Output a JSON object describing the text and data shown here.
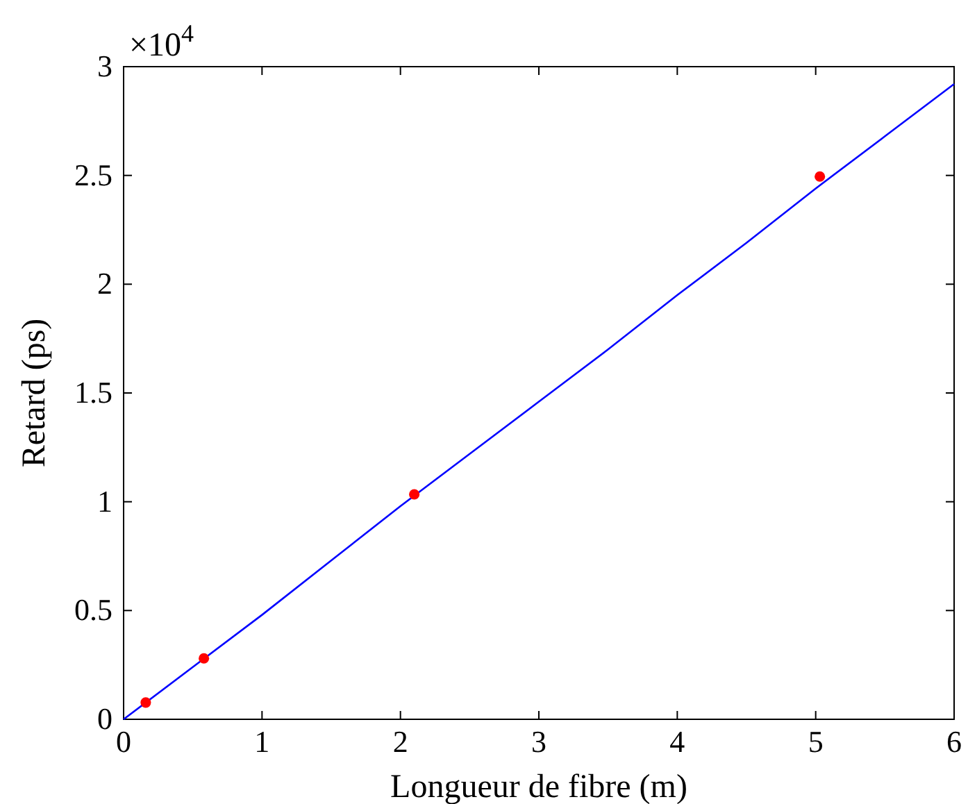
{
  "chart_data": {
    "type": "line",
    "xlabel": "Longueur de fibre (m)",
    "ylabel": "Retard (ps)",
    "annotations": [
      "×10$^{4}$"
    ],
    "xlim": [
      0,
      6
    ],
    "xticks": [
      0,
      1,
      2,
      3,
      4,
      5,
      6
    ],
    "ylim": [
      0,
      3
    ],
    "yticks": [
      0,
      0.5,
      1,
      1.5,
      2,
      2.5,
      3
    ],
    "grid": false,
    "series": [
      {
        "color": "#0000ff",
        "marker": "none",
        "line_style": "solid",
        "x": [
          0,
          0.5,
          1,
          1.5,
          2,
          2.5,
          3,
          3.5,
          4,
          4.5,
          5,
          5.5,
          6
        ],
        "values": [
          0,
          0.24,
          0.48,
          0.73,
          0.98,
          1.22,
          1.46,
          1.7,
          1.95,
          2.19,
          2.44,
          2.68,
          2.92
        ]
      },
      {
        "type": "scatter",
        "color": "#ff0000",
        "marker": "circle",
        "x": [
          0.16,
          0.58,
          2.1,
          5.03
        ],
        "values": [
          0.077,
          0.28,
          1.034,
          2.495
        ]
      }
    ]
  }
}
